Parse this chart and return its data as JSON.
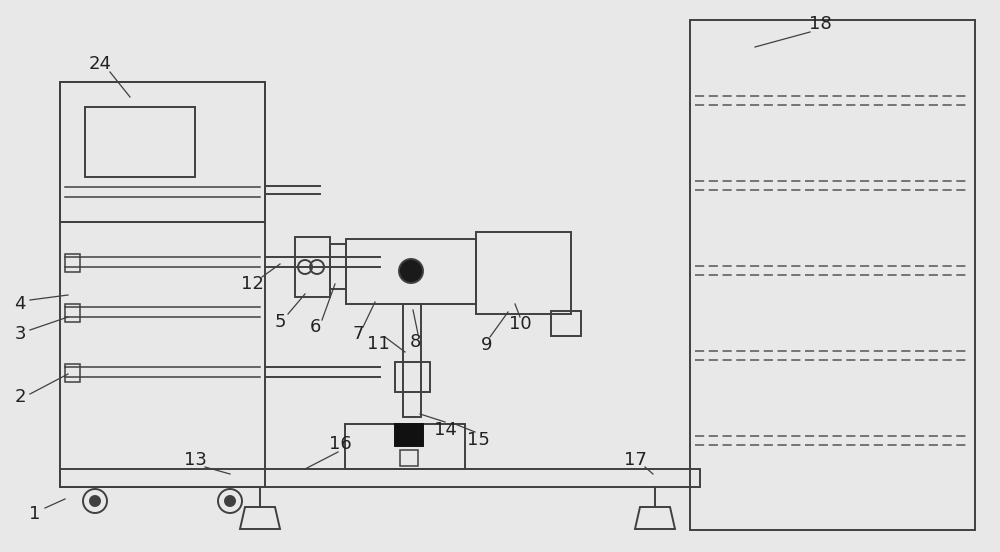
{
  "bg_color": "#e8e8e8",
  "line_color": "#404040",
  "dark_color": "#111111",
  "label_color": "#222222",
  "lw": 1.4,
  "lw2": 1.1,
  "figsize": [
    10.0,
    5.52
  ],
  "dpi": 100
}
